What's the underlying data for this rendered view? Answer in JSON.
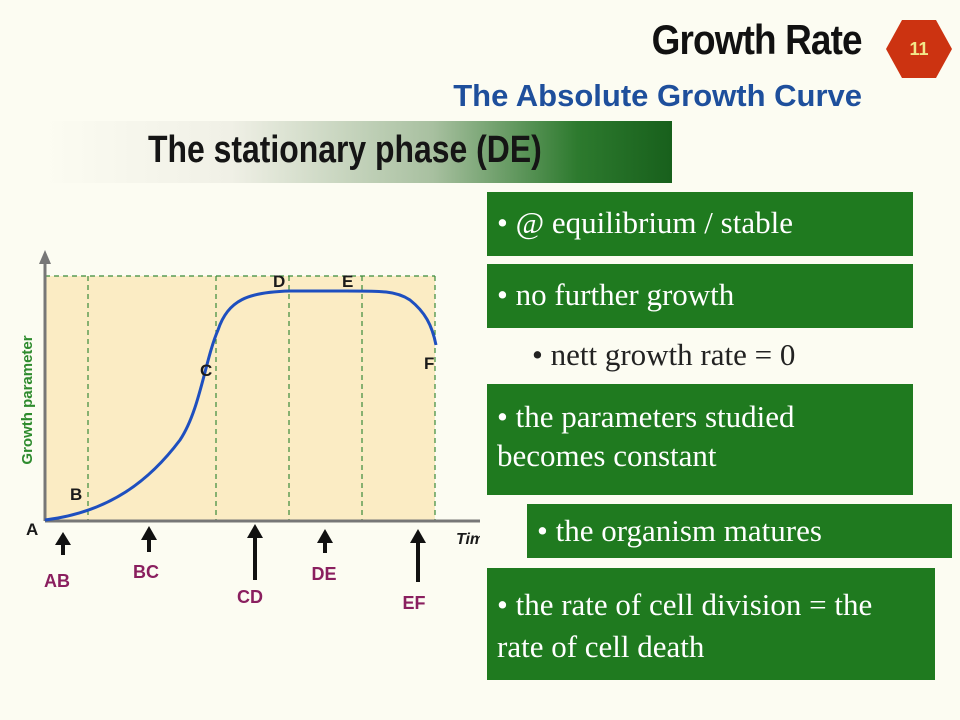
{
  "slide": {
    "title": "Growth Rate",
    "subtitle": "The Absolute Growth Curve",
    "page_number": "11",
    "section_banner": "The stationary phase (DE)"
  },
  "bullets": [
    "• @ equilibrium / stable",
    "• no further growth",
    "• nett growth rate = 0",
    "• the parameters studied becomes constant",
    "• the organism matures",
    "• the rate of cell division = the rate of cell death"
  ],
  "graph": {
    "y_axis_label": "Growth parameter",
    "x_axis_label": "Time",
    "points": [
      "A",
      "B",
      "C",
      "D",
      "E",
      "F"
    ],
    "phases": [
      "AB",
      "BC",
      "CD",
      "DE",
      "EF"
    ]
  },
  "colors": {
    "title": "#111111",
    "subtitle": "#1e4f9c",
    "box_green": "#1f7a1f",
    "badge": "#cc3311",
    "graph_fill": "#fbecc4",
    "curve": "#1e4fbf",
    "phase_label": "#8a1f5f",
    "axis_label_green": "#2e8b2e"
  }
}
